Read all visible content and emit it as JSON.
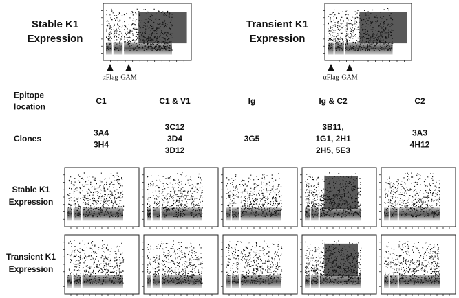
{
  "top_panels": [
    {
      "label_lines": [
        "Stable K1",
        "Expression"
      ],
      "markers": [
        "αFlag",
        "GAM"
      ]
    },
    {
      "label_lines": [
        "Transient K1",
        "Expression"
      ],
      "markers": [
        "αFlag",
        "GAM"
      ]
    }
  ],
  "table": {
    "row_labels": [
      [
        "Epitope",
        "location"
      ],
      [
        "Clones"
      ]
    ],
    "columns": [
      {
        "epitope": "C1",
        "clones": [
          "3A4",
          "3H4"
        ]
      },
      {
        "epitope": "C1 & V1",
        "clones": [
          "3C12",
          "3D4",
          "3D12"
        ]
      },
      {
        "epitope": "Ig",
        "clones": [
          "3G5"
        ]
      },
      {
        "epitope": "Ig & C2",
        "clones": [
          "3B11,",
          "1G1, 2H1",
          "2H5, 5E3"
        ]
      },
      {
        "epitope": "C2",
        "clones": [
          "3A3",
          "4H12"
        ]
      }
    ]
  },
  "plot_rows": [
    {
      "label_lines": [
        "Stable K1",
        "Expression"
      ]
    },
    {
      "label_lines": [
        "Transient K1",
        "Expression"
      ]
    }
  ]
}
